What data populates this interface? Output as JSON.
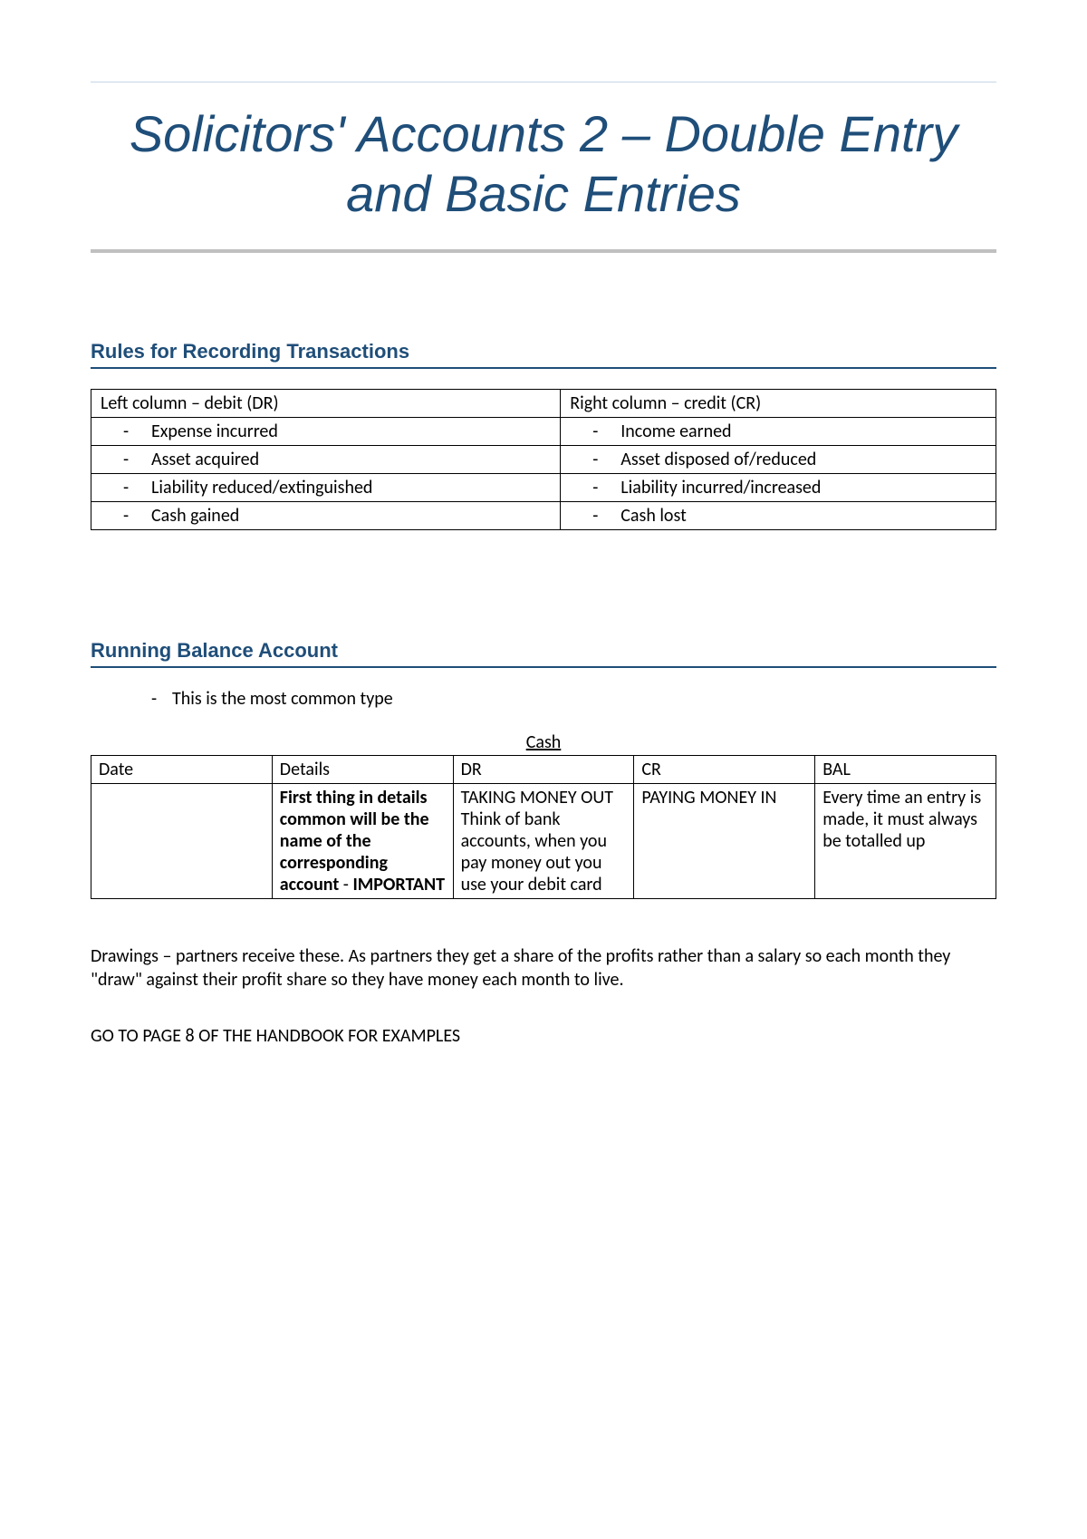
{
  "colors": {
    "heading": "#1f4e79",
    "rule_light": "#c5d7e6",
    "rule_gray": "#c0c0c0",
    "text": "#000000",
    "background": "#ffffff",
    "border": "#000000"
  },
  "title": "Solicitors' Accounts 2 – Double Entry and Basic Entries",
  "section1": {
    "heading": "Rules for Recording Transactions",
    "left_header": "Left column – debit (DR)",
    "right_header": "Right column – credit (CR)",
    "rows": [
      {
        "left": "Expense incurred",
        "right": "Income earned"
      },
      {
        "left": "Asset acquired",
        "right": "Asset disposed of/reduced"
      },
      {
        "left": "Liability reduced/extinguished",
        "right": "Liability incurred/increased"
      },
      {
        "left": "Cash gained",
        "right": "Cash lost"
      }
    ]
  },
  "section2": {
    "heading": "Running Balance Account",
    "note": "This is the most common type",
    "table_caption": "Cash",
    "columns": [
      "Date",
      "Details",
      "DR",
      "CR",
      "BAL"
    ],
    "row": {
      "date": "",
      "details_bold": "First thing in details common will be the name of the corresponding account",
      "details_after": " - ",
      "details_tail": "IMPORTANT",
      "dr_line1": "TAKING MONEY OUT",
      "dr_line2": "Think of bank accounts, when you pay money out you use your debit card",
      "cr": "PAYING MONEY IN",
      "bal": "Every time an entry is made, it must always be totalled up"
    }
  },
  "para1": "Drawings – partners receive these. As partners they get a share of the profits rather than a salary so each month they \"draw\" against their profit share so they have money each month to live.",
  "para2": "GO TO PAGE 8 OF THE HANDBOOK FOR EXAMPLES"
}
